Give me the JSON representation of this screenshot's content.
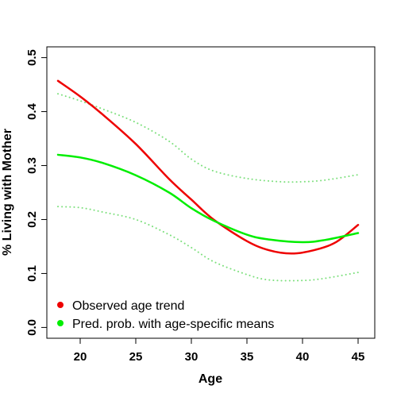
{
  "chart_data": {
    "type": "line",
    "title": "",
    "xlabel": "Age",
    "ylabel": "% Living with Mother",
    "xlim": [
      17,
      46.5
    ],
    "ylim": [
      -0.02,
      0.52
    ],
    "x_ticks": [
      20,
      25,
      30,
      35,
      40,
      45
    ],
    "y_ticks": [
      0.0,
      0.1,
      0.2,
      0.3,
      0.4,
      0.5
    ],
    "x_tick_labels": [
      "20",
      "25",
      "30",
      "35",
      "40",
      "45"
    ],
    "y_tick_labels": [
      "0.0",
      "0.1",
      "0.2",
      "0.3",
      "0.4",
      "0.5"
    ],
    "series": [
      {
        "name": "Observed age trend",
        "color": "#ee0000",
        "style": "solid",
        "in_legend": true,
        "x": [
          18,
          20,
          22,
          25,
          28,
          30,
          32,
          35,
          37,
          39,
          41,
          43,
          45
        ],
        "y": [
          0.457,
          0.428,
          0.395,
          0.34,
          0.275,
          0.237,
          0.2,
          0.16,
          0.143,
          0.137,
          0.143,
          0.158,
          0.19
        ]
      },
      {
        "name": "Pred. prob. with age-specific means",
        "color": "#00ee00",
        "style": "solid",
        "in_legend": true,
        "x": [
          18,
          20,
          22,
          25,
          28,
          30,
          32,
          35,
          37,
          40,
          42,
          45
        ],
        "y": [
          0.32,
          0.315,
          0.305,
          0.282,
          0.25,
          0.221,
          0.198,
          0.172,
          0.163,
          0.158,
          0.162,
          0.175
        ]
      },
      {
        "name": "Upper bound",
        "color": "#7fe07f",
        "style": "dotted",
        "in_legend": false,
        "x": [
          18,
          20,
          22,
          25,
          28,
          30,
          32,
          35,
          38,
          40,
          42,
          45
        ],
        "y": [
          0.433,
          0.42,
          0.405,
          0.38,
          0.345,
          0.312,
          0.29,
          0.276,
          0.27,
          0.27,
          0.273,
          0.283
        ]
      },
      {
        "name": "Lower bound",
        "color": "#7fe07f",
        "style": "dotted",
        "in_legend": false,
        "x": [
          18,
          20,
          22,
          25,
          28,
          30,
          32,
          35,
          37,
          40,
          42,
          45
        ],
        "y": [
          0.224,
          0.222,
          0.214,
          0.2,
          0.172,
          0.148,
          0.122,
          0.098,
          0.088,
          0.087,
          0.091,
          0.102
        ]
      }
    ],
    "legend_position": "bottom-left",
    "grid": false
  }
}
